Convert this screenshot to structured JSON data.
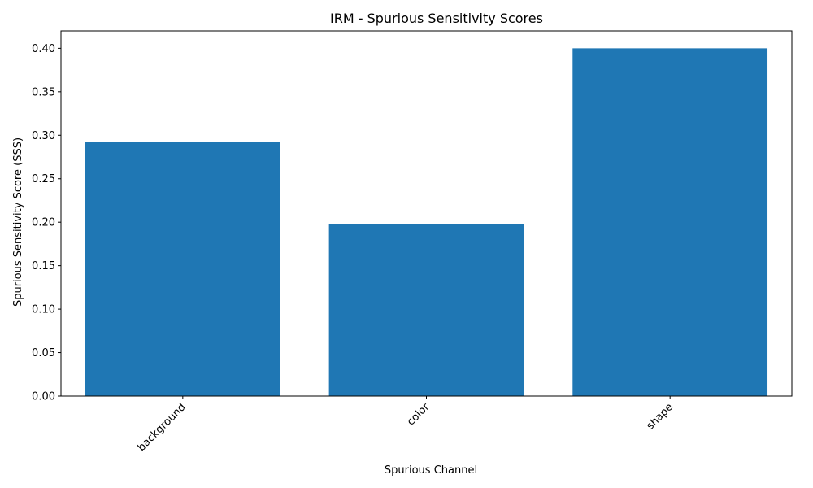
{
  "chart_data": {
    "type": "bar",
    "title": "IRM - Spurious Sensitivity Scores",
    "xlabel": "Spurious Channel",
    "ylabel": "Spurious Sensitivity Score (SSS)",
    "categories": [
      "background",
      "color",
      "shape"
    ],
    "values": [
      0.292,
      0.198,
      0.4
    ],
    "ylim": [
      0,
      0.42
    ],
    "yticks": [
      0.0,
      0.05,
      0.1,
      0.15,
      0.2,
      0.25,
      0.3,
      0.35,
      0.4
    ],
    "ytick_labels": [
      "0.00",
      "0.05",
      "0.10",
      "0.15",
      "0.20",
      "0.25",
      "0.30",
      "0.35",
      "0.40"
    ],
    "bar_color": "#1f77b4",
    "grid": false,
    "xtick_rotation_deg": 45
  }
}
